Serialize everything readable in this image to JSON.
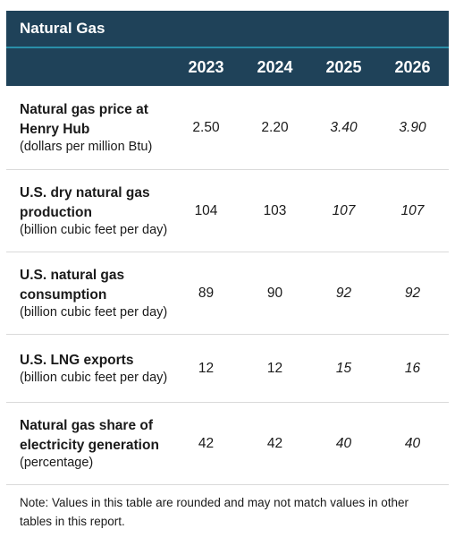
{
  "title": "Natural Gas",
  "years": [
    "2023",
    "2024",
    "2025",
    "2026"
  ],
  "rows": [
    {
      "label": "Natural gas price at Henry Hub",
      "unit": "(dollars per million Btu)",
      "values": [
        "2.50",
        "2.20",
        "3.40",
        "3.90"
      ]
    },
    {
      "label": "U.S. dry natural gas production",
      "unit": "(billion cubic feet per day)",
      "values": [
        "104",
        "103",
        "107",
        "107"
      ]
    },
    {
      "label": "U.S. natural gas consumption",
      "unit": "(billion cubic feet per day)",
      "values": [
        "89",
        "90",
        "92",
        "92"
      ]
    },
    {
      "label": "U.S. LNG exports",
      "unit": "(billion cubic feet per day)",
      "values": [
        "12",
        "12",
        "15",
        "16"
      ]
    },
    {
      "label": "Natural gas share of electricity generation",
      "unit": "(percentage)",
      "values": [
        "42",
        "42",
        "40",
        "40"
      ]
    }
  ],
  "note": "Note: Values in this table are rounded and may not match values in other tables in this report."
}
